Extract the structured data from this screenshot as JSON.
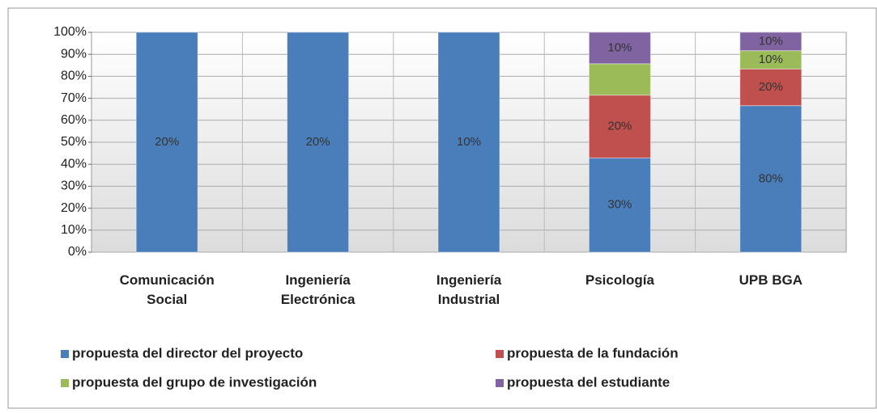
{
  "chart_data": {
    "type": "bar",
    "stacking": "percent",
    "categories": [
      "Comunicación\nSocial",
      "Ingeniería\nElectrónica",
      "Ingeniería\nIndustrial",
      "Psicología",
      "UPB BGA"
    ],
    "series": [
      {
        "name": "propuesta del director del proyecto",
        "color": "#4a7ebb",
        "values": [
          20,
          20,
          10,
          30,
          80
        ],
        "value_labels": [
          "20%",
          "20%",
          "10%",
          "30%",
          "80%"
        ]
      },
      {
        "name": "propuesta de la fundación",
        "color": "#c0504d",
        "values": [
          null,
          null,
          null,
          20,
          20
        ],
        "value_labels": [
          null,
          null,
          null,
          "20%",
          "20%"
        ]
      },
      {
        "name": "propuesta del grupo de investigación",
        "color": "#9bbb59",
        "values": [
          null,
          null,
          null,
          10,
          10
        ],
        "value_labels": [
          null,
          null,
          null,
          null,
          "10%"
        ]
      },
      {
        "name": "propuesta del estudiante",
        "color": "#8064a2",
        "values": [
          null,
          null,
          null,
          10,
          10
        ],
        "value_labels": [
          null,
          null,
          null,
          "10%",
          "10%"
        ]
      }
    ],
    "ylim": [
      0,
      100
    ],
    "yticks": [
      {
        "value": 0,
        "label": "0%"
      },
      {
        "value": 10,
        "label": "10%"
      },
      {
        "value": 20,
        "label": "20%"
      },
      {
        "value": 30,
        "label": "30%"
      },
      {
        "value": 40,
        "label": "40%"
      },
      {
        "value": 50,
        "label": "50%"
      },
      {
        "value": 60,
        "label": "60%"
      },
      {
        "value": 70,
        "label": "70%"
      },
      {
        "value": 80,
        "label": "80%"
      },
      {
        "value": 90,
        "label": "90%"
      },
      {
        "value": 100,
        "label": "100%"
      }
    ],
    "grid": true,
    "legend": "bottom"
  }
}
